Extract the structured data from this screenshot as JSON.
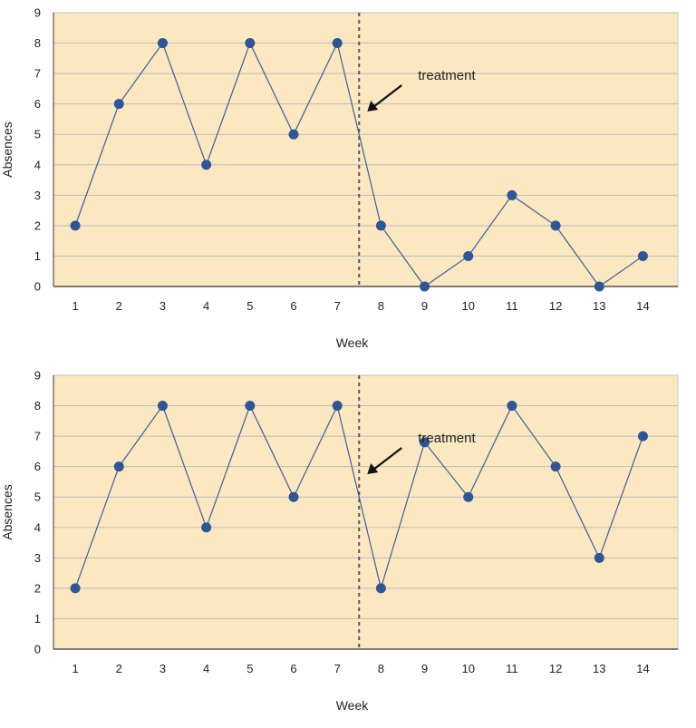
{
  "chart_data": [
    {
      "type": "line",
      "xlabel": "Week",
      "ylabel": "Absences",
      "x": [
        1,
        2,
        3,
        4,
        5,
        6,
        7,
        8,
        9,
        10,
        11,
        12,
        13,
        14
      ],
      "xlim": [
        0.5,
        14.8
      ],
      "ylim": [
        0,
        9
      ],
      "yticks": [
        0,
        1,
        2,
        3,
        4,
        5,
        6,
        7,
        8,
        9
      ],
      "series": [
        {
          "values": [
            2,
            6,
            8,
            4,
            8,
            5,
            8,
            2,
            0,
            1,
            3,
            2,
            0,
            1
          ]
        }
      ],
      "treatment_line_x": 7.5,
      "annotation": {
        "text": "treatment"
      },
      "grid": true,
      "legend": "none",
      "colors": {
        "background": "#fbe7c0",
        "line": "#3d5f97",
        "marker": "#2e5597",
        "grid": "#bdbdbd",
        "divider": "#555555"
      }
    },
    {
      "type": "line",
      "xlabel": "Week",
      "ylabel": "Absences",
      "x": [
        1,
        2,
        3,
        4,
        5,
        6,
        7,
        8,
        9,
        10,
        11,
        12,
        13,
        14
      ],
      "xlim": [
        0.5,
        14.8
      ],
      "ylim": [
        0,
        9
      ],
      "yticks": [
        0,
        1,
        2,
        3,
        4,
        5,
        6,
        7,
        8,
        9
      ],
      "series": [
        {
          "values": [
            2,
            6,
            8,
            4,
            8,
            5,
            8,
            2,
            6.8,
            5,
            8,
            6,
            3,
            7
          ]
        }
      ],
      "treatment_line_x": 7.5,
      "annotation": {
        "text": "treatment"
      },
      "grid": true,
      "legend": "none",
      "colors": {
        "background": "#fbe7c0",
        "line": "#3d5f97",
        "marker": "#2e5597",
        "grid": "#bdbdbd",
        "divider": "#555555"
      }
    }
  ]
}
